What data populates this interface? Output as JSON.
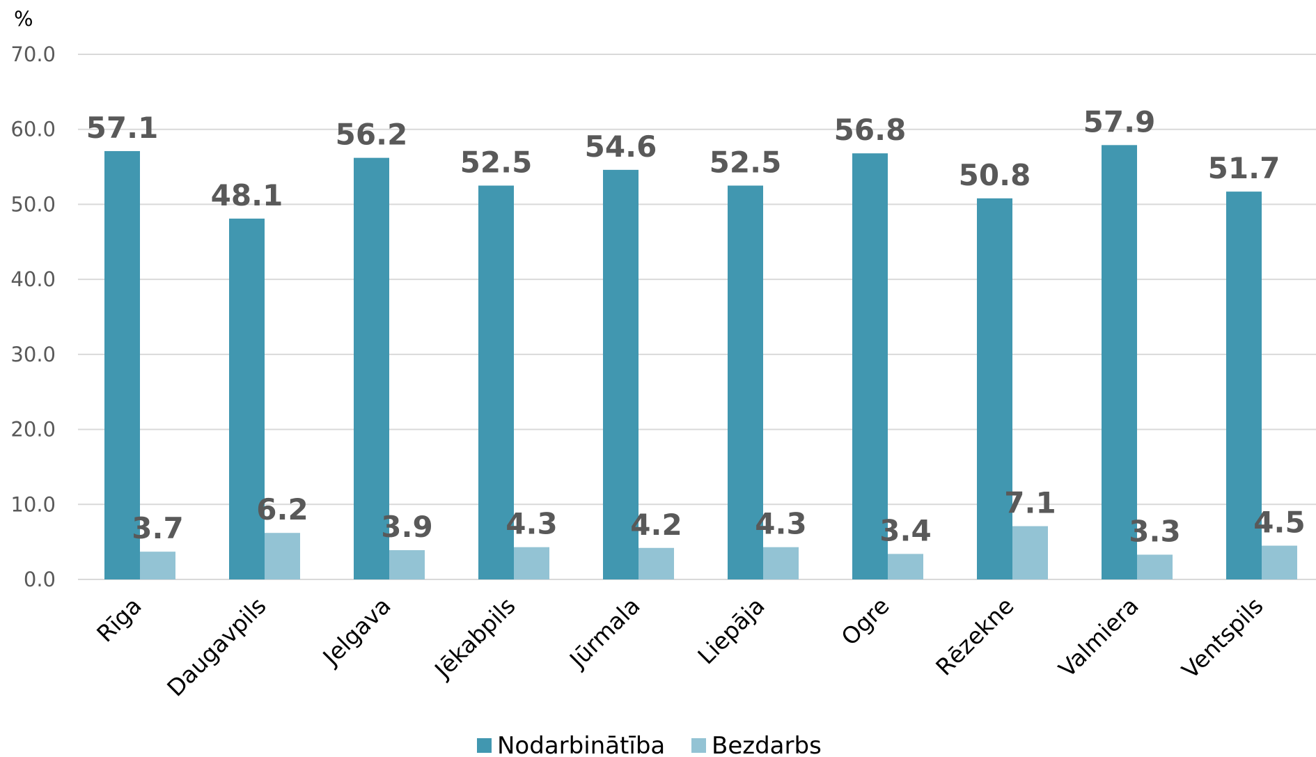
{
  "chart_data": {
    "type": "bar",
    "unit_label": "%",
    "ylim": [
      0,
      70
    ],
    "yticks": [
      "0.0",
      "10.0",
      "20.0",
      "30.0",
      "40.0",
      "50.0",
      "60.0",
      "70.0"
    ],
    "grid": true,
    "legend_position": "bottom",
    "categories": [
      "Rīga",
      "Daugavpils",
      "Jelgava",
      "Jēkabpils",
      "Jūrmala",
      "Liepāja",
      "Ogre",
      "Rēzekne",
      "Valmiera",
      "Ventspils"
    ],
    "series": [
      {
        "name": "Nodarbinātība",
        "color": "#4197b0",
        "values": [
          57.1,
          48.1,
          56.2,
          52.5,
          54.6,
          52.5,
          56.8,
          50.8,
          57.9,
          51.7
        ],
        "labels": [
          "57.1",
          "48.1",
          "56.2",
          "52.5",
          "54.6",
          "52.5",
          "56.8",
          "50.8",
          "57.9",
          "51.7"
        ]
      },
      {
        "name": "Bezdarbs",
        "color": "#93c3d4",
        "values": [
          3.7,
          6.2,
          3.9,
          4.3,
          4.2,
          4.3,
          3.4,
          7.1,
          3.3,
          4.5
        ],
        "labels": [
          "3.7",
          "6.2",
          "3.9",
          "4.3",
          "4.2",
          "4.3",
          "3.4",
          "7.1",
          "3.3",
          "4.5"
        ]
      }
    ]
  }
}
